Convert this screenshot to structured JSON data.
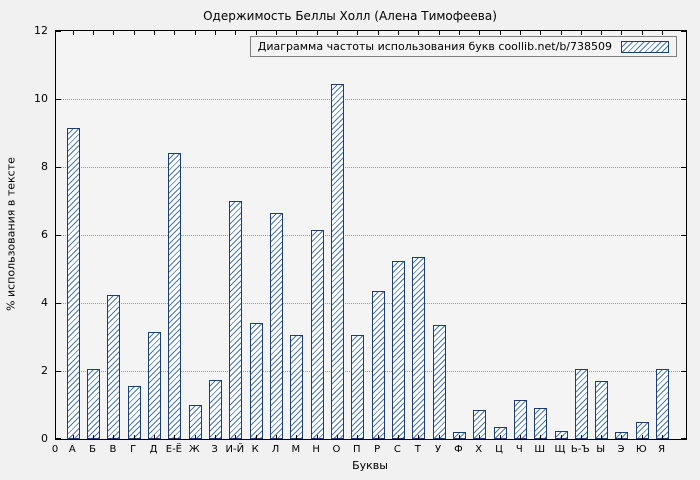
{
  "chart_data": {
    "type": "bar",
    "title": "Одержимость Беллы Холл (Алена Тимофеева)",
    "legend_label": "Диаграмма частоты использования букв coollib.net/b/738509",
    "legend_position": "top-right",
    "xlabel": "Буквы",
    "ylabel": "% использования в тексте",
    "x_origin_label": "0",
    "ylim": [
      0,
      12
    ],
    "yticks": [
      0,
      2,
      4,
      6,
      8,
      10,
      12
    ],
    "grid": "dotted-horizontal",
    "categories": [
      "А",
      "Б",
      "В",
      "Г",
      "Д",
      "Е-Ё",
      "Ж",
      "З",
      "И-Й",
      "К",
      "Л",
      "М",
      "Н",
      "О",
      "П",
      "Р",
      "С",
      "Т",
      "У",
      "Ф",
      "Х",
      "Ц",
      "Ч",
      "Ш",
      "Щ",
      "Ь-Ъ",
      "Ы",
      "Э",
      "Ю",
      "Я"
    ],
    "values": [
      9.15,
      2.05,
      4.25,
      1.55,
      3.15,
      8.4,
      1.0,
      1.75,
      7.0,
      3.4,
      6.65,
      3.05,
      6.15,
      10.45,
      3.05,
      4.35,
      5.25,
      5.35,
      3.35,
      0.2,
      0.85,
      0.35,
      1.15,
      0.9,
      0.25,
      2.05,
      1.7,
      0.2,
      0.5,
      2.05
    ],
    "colors": {
      "background": "#f1f1f1",
      "bar_border": "#1b3d74",
      "bar_hatch": "#4a77b4",
      "grid": "#9a9a9a",
      "axis": "#000000"
    }
  }
}
